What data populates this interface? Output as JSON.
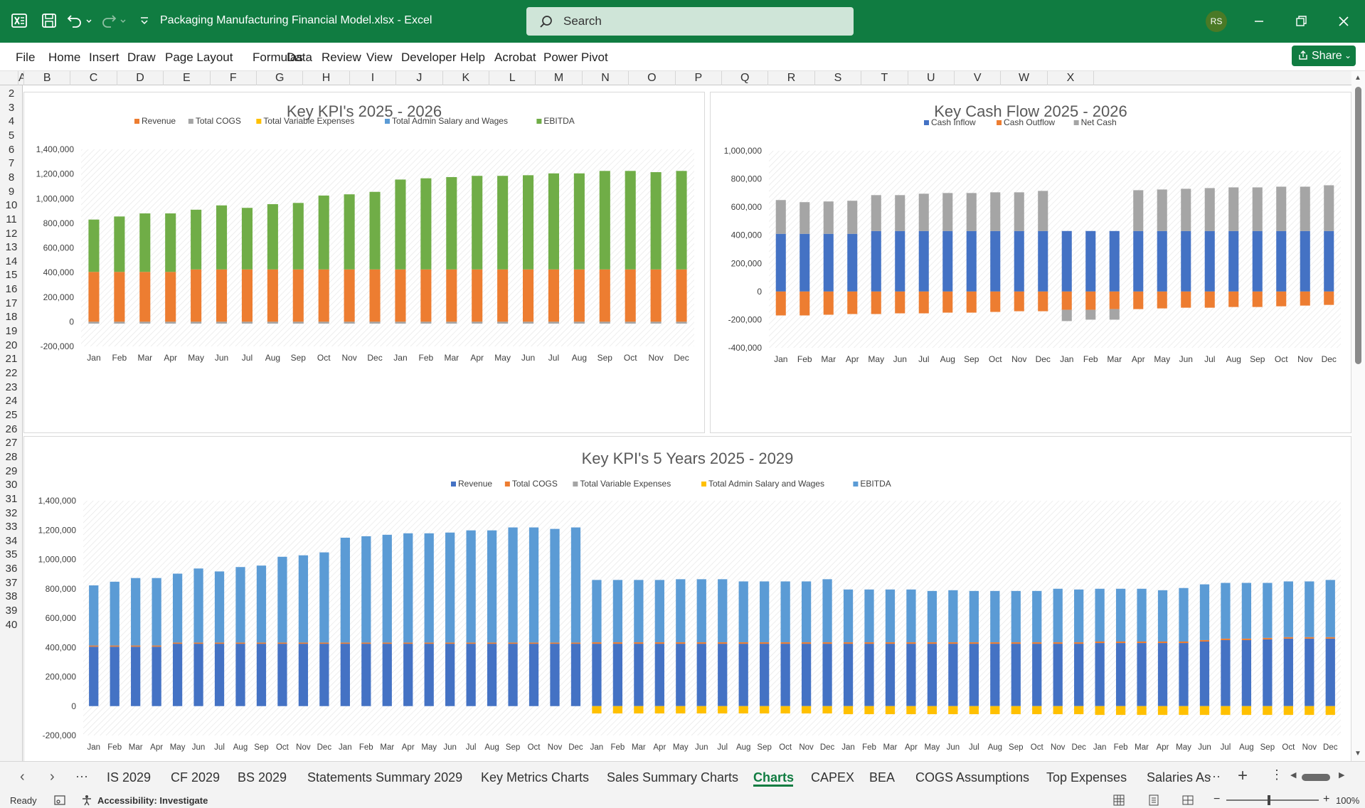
{
  "app": {
    "title": "Packaging Manufacturing Financial Model.xlsx  -  Excel",
    "search_placeholder": "Search",
    "user_initials": "RS",
    "brand_color": "#107c41"
  },
  "menu": {
    "items": [
      "File",
      "Home",
      "Insert",
      "Draw",
      "Page Layout",
      "Formulas",
      "Data",
      "Review",
      "View",
      "Developer",
      "Help",
      "Acrobat",
      "Power Pivot"
    ],
    "share_label": "Share"
  },
  "grid": {
    "columns": [
      "A",
      "B",
      "C",
      "D",
      "E",
      "F",
      "G",
      "H",
      "I",
      "J",
      "K",
      "L",
      "M",
      "N",
      "O",
      "P",
      "Q",
      "R",
      "S",
      "T",
      "U",
      "V",
      "W",
      "X"
    ],
    "rows": [
      "2",
      "3",
      "4",
      "5",
      "6",
      "7",
      "8",
      "9",
      "10",
      "11",
      "12",
      "13",
      "14",
      "15",
      "16",
      "17",
      "18",
      "19",
      "20",
      "21",
      "22",
      "23",
      "24",
      "25",
      "26",
      "27",
      "28",
      "29",
      "30",
      "31",
      "32",
      "33",
      "34",
      "35",
      "36",
      "37",
      "38",
      "39",
      "40"
    ]
  },
  "chart_data": [
    {
      "type": "bar",
      "stacked": true,
      "title": "Key KPI's 2025 - 2026",
      "legend": [
        "Revenue",
        "Total COGS",
        "Total Variable Expenses",
        "Total Admin Salary and Wages",
        "EBITDA"
      ],
      "legend_position": "top",
      "categories": [
        "Jan",
        "Feb",
        "Mar",
        "Apr",
        "May",
        "Jun",
        "Jul",
        "Aug",
        "Sep",
        "Oct",
        "Nov",
        "Dec",
        "Jan",
        "Feb",
        "Mar",
        "Apr",
        "May",
        "Jun",
        "Jul",
        "Aug",
        "Sep",
        "Oct",
        "Nov",
        "Dec"
      ],
      "ylim": [
        -200000,
        1400000
      ],
      "yticks": [
        "1,400,000",
        "1,200,000",
        "1,000,000",
        "800,000",
        "600,000",
        "400,000",
        "200,000",
        "0",
        "-200,000"
      ],
      "series": [
        {
          "name": "Revenue",
          "color": "#ed7d31",
          "values": [
            405000,
            405000,
            405000,
            405000,
            425000,
            425000,
            425000,
            425000,
            425000,
            425000,
            425000,
            425000,
            425000,
            425000,
            425000,
            425000,
            425000,
            425000,
            425000,
            425000,
            425000,
            425000,
            425000,
            425000
          ]
        },
        {
          "name": "Total COGS",
          "color": "#a5a5a5",
          "values": [
            -15000,
            -15000,
            -15000,
            -15000,
            -15000,
            -15000,
            -15000,
            -15000,
            -15000,
            -15000,
            -15000,
            -15000,
            -15000,
            -15000,
            -15000,
            -15000,
            -15000,
            -15000,
            -15000,
            -15000,
            -15000,
            -15000,
            -15000,
            -15000
          ]
        },
        {
          "name": "EBITDA",
          "color": "#70ad47",
          "values": [
            425000,
            450000,
            475000,
            475000,
            485000,
            520000,
            500000,
            530000,
            540000,
            600000,
            610000,
            630000,
            730000,
            740000,
            750000,
            760000,
            760000,
            765000,
            780000,
            780000,
            800000,
            800000,
            790000,
            800000
          ]
        }
      ]
    },
    {
      "type": "bar",
      "stacked": true,
      "title": "Key Cash Flow 2025 - 2026",
      "legend": [
        "Cash Inflow",
        "Cash Outflow",
        "Net Cash"
      ],
      "legend_position": "top",
      "categories": [
        "Jan",
        "Feb",
        "Mar",
        "Apr",
        "May",
        "Jun",
        "Jul",
        "Aug",
        "Sep",
        "Oct",
        "Nov",
        "Dec",
        "Jan",
        "Feb",
        "Mar",
        "Apr",
        "May",
        "Jun",
        "Jul",
        "Aug",
        "Sep",
        "Oct",
        "Nov",
        "Dec"
      ],
      "ylim": [
        -400000,
        1000000
      ],
      "yticks": [
        "1,000,000",
        "800,000",
        "600,000",
        "400,000",
        "200,000",
        "0",
        "-200,000",
        "-400,000"
      ],
      "series": [
        {
          "name": "Cash Inflow",
          "color": "#4472c4",
          "values": [
            410000,
            410000,
            410000,
            410000,
            430000,
            430000,
            430000,
            430000,
            430000,
            430000,
            430000,
            430000,
            430000,
            430000,
            430000,
            430000,
            430000,
            430000,
            430000,
            430000,
            430000,
            430000,
            430000,
            430000
          ]
        },
        {
          "name": "Cash Outflow",
          "color": "#ed7d31",
          "values": [
            -170000,
            -170000,
            -165000,
            -160000,
            -160000,
            -155000,
            -155000,
            -150000,
            -150000,
            -145000,
            -140000,
            -140000,
            -130000,
            -130000,
            -125000,
            -125000,
            -120000,
            -115000,
            -115000,
            -110000,
            -110000,
            -105000,
            -100000,
            -95000
          ]
        },
        {
          "name": "Net Cash",
          "color": "#a5a5a5",
          "values": [
            240000,
            225000,
            230000,
            235000,
            255000,
            255000,
            265000,
            270000,
            270000,
            275000,
            275000,
            285000,
            -80000,
            -70000,
            -75000,
            290000,
            295000,
            300000,
            305000,
            310000,
            310000,
            315000,
            315000,
            325000
          ]
        }
      ]
    },
    {
      "type": "bar",
      "stacked": true,
      "title": "Key KPI's 5 Years 2025 - 2029",
      "legend": [
        "Revenue",
        "Total COGS",
        "Total Variable Expenses",
        "Total Admin Salary and Wages",
        "EBITDA"
      ],
      "legend_position": "top",
      "categories": [
        "Jan",
        "Feb",
        "Mar",
        "Apr",
        "May",
        "Jun",
        "Jul",
        "Aug",
        "Sep",
        "Oct",
        "Nov",
        "Dec",
        "Jan",
        "Feb",
        "Mar",
        "Apr",
        "May",
        "Jun",
        "Jul",
        "Aug",
        "Sep",
        "Oct",
        "Nov",
        "Dec",
        "Jan",
        "Feb",
        "Mar",
        "Apr",
        "May",
        "Jun",
        "Jul",
        "Aug",
        "Sep",
        "Oct",
        "Nov",
        "Dec",
        "Jan",
        "Feb",
        "Mar",
        "Apr",
        "May",
        "Jun",
        "Jul",
        "Aug",
        "Sep",
        "Oct",
        "Nov",
        "Dec",
        "Jan",
        "Feb",
        "Mar",
        "Apr",
        "May",
        "Jun",
        "Jul",
        "Aug",
        "Sep",
        "Oct",
        "Nov",
        "Dec"
      ],
      "ylim": [
        -200000,
        1400000
      ],
      "yticks": [
        "1,400,000",
        "1,200,000",
        "1,000,000",
        "800,000",
        "600,000",
        "400,000",
        "200,000",
        "0",
        "-200,000"
      ],
      "series": [
        {
          "name": "Revenue",
          "color": "#4472c4",
          "values": [
            405000,
            405000,
            405000,
            405000,
            425000,
            425000,
            425000,
            425000,
            425000,
            425000,
            425000,
            425000,
            425000,
            425000,
            425000,
            425000,
            425000,
            425000,
            425000,
            425000,
            425000,
            425000,
            425000,
            425000,
            425000,
            425000,
            425000,
            425000,
            425000,
            425000,
            425000,
            425000,
            425000,
            425000,
            425000,
            425000,
            425000,
            425000,
            425000,
            425000,
            425000,
            425000,
            425000,
            425000,
            425000,
            425000,
            425000,
            425000,
            430000,
            430000,
            430000,
            430000,
            430000,
            440000,
            450000,
            450000,
            455000,
            460000,
            460000,
            460000
          ]
        },
        {
          "name": "Total COGS",
          "color": "#ed7d31",
          "values": [
            8000,
            8000,
            8000,
            8000,
            8000,
            8000,
            8000,
            8000,
            8000,
            8000,
            8000,
            8000,
            8000,
            8000,
            8000,
            8000,
            8000,
            8000,
            8000,
            8000,
            8000,
            8000,
            8000,
            8000,
            10000,
            10000,
            10000,
            10000,
            10000,
            10000,
            10000,
            10000,
            10000,
            10000,
            10000,
            10000,
            10000,
            10000,
            10000,
            10000,
            10000,
            10000,
            10000,
            10000,
            10000,
            10000,
            10000,
            10000,
            10000,
            10000,
            10000,
            10000,
            10000,
            10000,
            10000,
            10000,
            10000,
            10000,
            10000,
            10000
          ]
        },
        {
          "name": "Total Admin Salary and Wages",
          "color": "#ffc000",
          "values": [
            0,
            0,
            0,
            0,
            0,
            0,
            0,
            0,
            0,
            0,
            0,
            0,
            0,
            0,
            0,
            0,
            0,
            0,
            0,
            0,
            0,
            0,
            0,
            0,
            -50000,
            -50000,
            -50000,
            -50000,
            -50000,
            -50000,
            -50000,
            -50000,
            -50000,
            -50000,
            -50000,
            -50000,
            -55000,
            -55000,
            -55000,
            -55000,
            -55000,
            -55000,
            -55000,
            -55000,
            -55000,
            -55000,
            -55000,
            -55000,
            -60000,
            -60000,
            -60000,
            -60000,
            -60000,
            -60000,
            -60000,
            -60000,
            -60000,
            -60000,
            -60000,
            -60000
          ]
        },
        {
          "name": "EBITDA",
          "color": "#5b9bd5",
          "values": [
            410000,
            435000,
            460000,
            460000,
            470000,
            505000,
            485000,
            515000,
            525000,
            585000,
            595000,
            615000,
            715000,
            725000,
            735000,
            745000,
            745000,
            750000,
            765000,
            765000,
            785000,
            785000,
            775000,
            785000,
            425000,
            425000,
            425000,
            425000,
            430000,
            430000,
            430000,
            415000,
            415000,
            415000,
            415000,
            430000,
            360000,
            360000,
            360000,
            360000,
            350000,
            355000,
            350000,
            350000,
            350000,
            350000,
            365000,
            360000,
            360000,
            360000,
            360000,
            350000,
            365000,
            380000,
            380000,
            380000,
            375000,
            380000,
            380000,
            390000
          ]
        }
      ]
    }
  ],
  "sheet_tabs": [
    "IS 2029",
    "CF 2029",
    "BS 2029",
    "Statements Summary 2029",
    "Key Metrics Charts",
    "Sales Summary Charts",
    "Charts",
    "CAPEX",
    "BEA",
    "COGS Assumptions",
    "Top Expenses",
    "Salaries As"
  ],
  "active_tab": "Charts",
  "status": {
    "ready": "Ready",
    "accessibility": "Accessibility: Investigate",
    "zoom": "100%"
  }
}
